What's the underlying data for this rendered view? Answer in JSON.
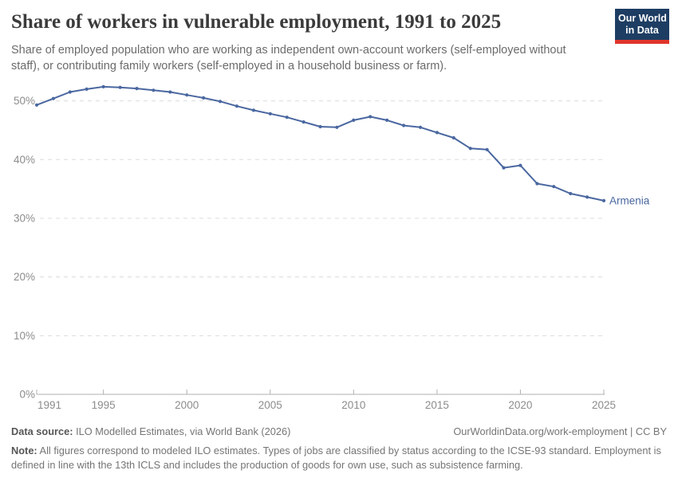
{
  "header": {
    "title": "Share of workers in vulnerable employment, 1991 to 2025",
    "subtitle": "Share of employed population who are working as independent own-account workers (self-employed without staff), or contributing family workers (self-employed in a household business or farm).",
    "logo": {
      "line1": "Our World",
      "line2": "in Data"
    }
  },
  "chart_data": {
    "type": "line",
    "title": "Share of workers in vulnerable employment, 1991 to 2025",
    "xlabel": "",
    "ylabel": "",
    "xlim": [
      1991,
      2025
    ],
    "ylim": [
      0,
      55
    ],
    "grid": "horizontal-dashed",
    "legend_position": "end-of-line-label",
    "xticks": [
      1991,
      1995,
      2000,
      2005,
      2010,
      2015,
      2020,
      2025
    ],
    "yticks": [
      {
        "v": 0,
        "label": "0%"
      },
      {
        "v": 10,
        "label": "10%"
      },
      {
        "v": 20,
        "label": "20%"
      },
      {
        "v": 30,
        "label": "30%"
      },
      {
        "v": 40,
        "label": "40%"
      },
      {
        "v": 50,
        "label": "50%"
      }
    ],
    "series": [
      {
        "name": "Armenia",
        "color": "#4a67a0",
        "x": [
          1991,
          1992,
          1993,
          1994,
          1995,
          1996,
          1997,
          1998,
          1999,
          2000,
          2001,
          2002,
          2003,
          2004,
          2005,
          2006,
          2007,
          2008,
          2009,
          2010,
          2011,
          2012,
          2013,
          2014,
          2015,
          2016,
          2017,
          2018,
          2019,
          2020,
          2021,
          2022,
          2023,
          2024,
          2025
        ],
        "values": [
          49.3,
          50.4,
          51.5,
          52.0,
          52.4,
          52.3,
          52.1,
          51.8,
          51.5,
          51.0,
          50.5,
          49.9,
          49.1,
          48.4,
          47.8,
          47.2,
          46.4,
          45.6,
          45.5,
          46.7,
          47.3,
          46.7,
          45.8,
          45.5,
          44.6,
          43.7,
          41.9,
          41.7,
          38.6,
          39.0,
          35.9,
          35.4,
          34.2,
          33.6,
          33.0
        ]
      }
    ]
  },
  "footer": {
    "source_label": "Data source:",
    "source_text": " ILO Modelled Estimates, via World Bank (2026)",
    "link_text": "OurWorldinData.org/work-employment | CC BY",
    "note_label": "Note:",
    "note_text": " All figures correspond to modeled ILO estimates. Types of jobs are classified by status according to the ICSE-93 standard. Employment is defined in line with the 13th ICLS and includes the production of goods for own use, such as subsistence farming."
  },
  "colors": {
    "line": "#4a67a0",
    "grid": "#dcdcdc",
    "axis": "#b0b0b0",
    "tick_label": "#8c8c8c",
    "logo_bg": "#1d3d63",
    "logo_accent": "#e0352b"
  }
}
